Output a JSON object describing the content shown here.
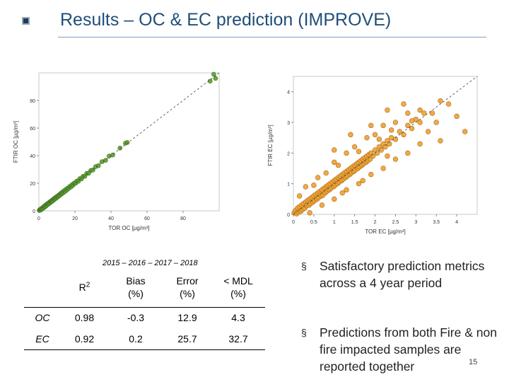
{
  "slide": {
    "title": "Results – OC & EC prediction (IMPROVE)",
    "page_number": "15"
  },
  "chart_data": [
    {
      "type": "scatter",
      "title": "",
      "xlabel": "TOR OC [µg/m³]",
      "ylabel": "FTIR OC [µg/m³]",
      "x_ticks": [
        "0",
        "20",
        "40",
        "60",
        "80"
      ],
      "y_ticks": [
        "0",
        "20",
        "40",
        "60",
        "80"
      ],
      "xlim": [
        0,
        100
      ],
      "ylim": [
        0,
        100
      ],
      "marker_color": "#5aa02c",
      "one_to_one_line": true,
      "points": [
        [
          0.2,
          0.3
        ],
        [
          0.5,
          0.8
        ],
        [
          0.8,
          0.4
        ],
        [
          1.0,
          1.3
        ],
        [
          1.3,
          0.9
        ],
        [
          1.6,
          1.8
        ],
        [
          1.9,
          1.4
        ],
        [
          2.2,
          2.5
        ],
        [
          2.5,
          2.0
        ],
        [
          2.8,
          3.1
        ],
        [
          3.1,
          2.6
        ],
        [
          3.4,
          3.8
        ],
        [
          3.7,
          3.2
        ],
        [
          4.0,
          4.4
        ],
        [
          4.3,
          3.9
        ],
        [
          4.6,
          5.0
        ],
        [
          4.9,
          4.5
        ],
        [
          5.2,
          5.6
        ],
        [
          5.5,
          5.1
        ],
        [
          5.8,
          6.2
        ],
        [
          6.1,
          5.7
        ],
        [
          6.4,
          6.8
        ],
        [
          6.7,
          6.3
        ],
        [
          7.0,
          7.4
        ],
        [
          7.3,
          6.9
        ],
        [
          7.6,
          8.0
        ],
        [
          7.9,
          7.5
        ],
        [
          8.2,
          8.6
        ],
        [
          8.5,
          8.1
        ],
        [
          8.8,
          9.2
        ],
        [
          9.1,
          8.7
        ],
        [
          9.4,
          9.8
        ],
        [
          9.7,
          9.3
        ],
        [
          10.0,
          10.4
        ],
        [
          10.4,
          10.0
        ],
        [
          10.8,
          11.2
        ],
        [
          11.2,
          10.8
        ],
        [
          11.6,
          12.0
        ],
        [
          12.0,
          11.6
        ],
        [
          12.4,
          12.9
        ],
        [
          12.8,
          12.4
        ],
        [
          13.2,
          13.7
        ],
        [
          13.6,
          13.2
        ],
        [
          14.0,
          14.5
        ],
        [
          14.5,
          14.0
        ],
        [
          15.0,
          15.6
        ],
        [
          15.5,
          15.0
        ],
        [
          16.0,
          16.5
        ],
        [
          16.6,
          16.2
        ],
        [
          17.2,
          17.7
        ],
        [
          17.8,
          17.3
        ],
        [
          18.4,
          19.0
        ],
        [
          19.0,
          18.6
        ],
        [
          19.7,
          20.2
        ],
        [
          20.4,
          20.0
        ],
        [
          21.1,
          21.6
        ],
        [
          21.9,
          21.4
        ],
        [
          22.7,
          23.3
        ],
        [
          23.6,
          23.1
        ],
        [
          24.5,
          25.0
        ],
        [
          25.5,
          25.0
        ],
        [
          26.5,
          27.1
        ],
        [
          27.6,
          27.2
        ],
        [
          28.8,
          29.2
        ],
        [
          30.0,
          29.6
        ],
        [
          31.5,
          32.0
        ],
        [
          33.0,
          32.7
        ],
        [
          35.0,
          35.6
        ],
        [
          37.0,
          36.6
        ],
        [
          39.0,
          39.7
        ],
        [
          41.0,
          40.5
        ],
        [
          45.0,
          45.5
        ],
        [
          48.0,
          49.0
        ],
        [
          49.0,
          49.5
        ],
        [
          97.0,
          99.0
        ],
        [
          98.0,
          96.0
        ],
        [
          95.0,
          94.0
        ]
      ]
    },
    {
      "type": "scatter",
      "title": "",
      "xlabel": "TOR EC [µg/m³]",
      "ylabel": "FTIR EC [µg/m³]",
      "x_ticks": [
        "0",
        "0.5",
        "1",
        "1.5",
        "2",
        "2.5",
        "3",
        "3.5",
        "4"
      ],
      "y_ticks": [
        "0",
        "1",
        "2",
        "3",
        "4"
      ],
      "xlim": [
        0,
        4.5
      ],
      "ylim": [
        0,
        4.5
      ],
      "marker_color": "#f0a030",
      "one_to_one_line": true,
      "points": [
        [
          0.02,
          0.05
        ],
        [
          0.05,
          0.12
        ],
        [
          0.08,
          0.02
        ],
        [
          0.1,
          0.2
        ],
        [
          0.12,
          0.08
        ],
        [
          0.15,
          0.25
        ],
        [
          0.18,
          0.1
        ],
        [
          0.2,
          0.3
        ],
        [
          0.22,
          0.15
        ],
        [
          0.25,
          0.35
        ],
        [
          0.28,
          0.2
        ],
        [
          0.3,
          0.4
        ],
        [
          0.32,
          0.28
        ],
        [
          0.35,
          0.45
        ],
        [
          0.38,
          0.3
        ],
        [
          0.4,
          0.5
        ],
        [
          0.42,
          0.35
        ],
        [
          0.45,
          0.55
        ],
        [
          0.48,
          0.4
        ],
        [
          0.5,
          0.6
        ],
        [
          0.52,
          0.45
        ],
        [
          0.55,
          0.65
        ],
        [
          0.58,
          0.5
        ],
        [
          0.6,
          0.7
        ],
        [
          0.62,
          0.55
        ],
        [
          0.65,
          0.75
        ],
        [
          0.68,
          0.6
        ],
        [
          0.7,
          0.8
        ],
        [
          0.72,
          0.62
        ],
        [
          0.75,
          0.85
        ],
        [
          0.78,
          0.7
        ],
        [
          0.8,
          0.9
        ],
        [
          0.82,
          0.75
        ],
        [
          0.85,
          0.95
        ],
        [
          0.88,
          0.8
        ],
        [
          0.9,
          1.0
        ],
        [
          0.92,
          0.85
        ],
        [
          0.95,
          1.05
        ],
        [
          0.98,
          0.9
        ],
        [
          1.0,
          1.1
        ],
        [
          1.02,
          0.95
        ],
        [
          1.05,
          1.15
        ],
        [
          1.08,
          1.0
        ],
        [
          1.1,
          1.2
        ],
        [
          1.12,
          1.05
        ],
        [
          1.15,
          1.25
        ],
        [
          1.18,
          1.1
        ],
        [
          1.2,
          1.3
        ],
        [
          1.22,
          1.15
        ],
        [
          1.25,
          1.35
        ],
        [
          1.28,
          1.2
        ],
        [
          1.3,
          1.4
        ],
        [
          1.32,
          1.25
        ],
        [
          1.35,
          1.45
        ],
        [
          1.38,
          1.3
        ],
        [
          1.4,
          1.5
        ],
        [
          1.42,
          1.35
        ],
        [
          1.45,
          1.55
        ],
        [
          1.48,
          1.4
        ],
        [
          1.5,
          1.6
        ],
        [
          1.52,
          1.45
        ],
        [
          1.55,
          1.65
        ],
        [
          1.58,
          1.5
        ],
        [
          1.6,
          1.7
        ],
        [
          1.62,
          1.55
        ],
        [
          1.65,
          1.75
        ],
        [
          1.68,
          1.6
        ],
        [
          1.7,
          1.8
        ],
        [
          1.72,
          1.65
        ],
        [
          1.75,
          1.85
        ],
        [
          1.78,
          1.7
        ],
        [
          1.8,
          1.9
        ],
        [
          1.82,
          1.75
        ],
        [
          1.85,
          1.95
        ],
        [
          1.88,
          1.8
        ],
        [
          1.9,
          2.0
        ],
        [
          1.95,
          1.9
        ],
        [
          2.0,
          2.1
        ],
        [
          2.05,
          2.0
        ],
        [
          2.1,
          2.2
        ],
        [
          2.15,
          2.1
        ],
        [
          2.2,
          2.3
        ],
        [
          2.25,
          2.2
        ],
        [
          2.3,
          2.4
        ],
        [
          2.35,
          2.3
        ],
        [
          2.4,
          2.5
        ],
        [
          2.5,
          2.45
        ],
        [
          2.6,
          2.7
        ],
        [
          2.7,
          2.6
        ],
        [
          2.8,
          2.9
        ],
        [
          2.9,
          2.8
        ],
        [
          3.0,
          3.1
        ],
        [
          3.1,
          3.0
        ],
        [
          3.2,
          3.3
        ],
        [
          3.4,
          3.3
        ],
        [
          3.6,
          3.7
        ],
        [
          3.8,
          3.6
        ],
        [
          4.0,
          3.2
        ],
        [
          4.2,
          2.7
        ],
        [
          0.3,
          0.9
        ],
        [
          0.6,
          1.2
        ],
        [
          1.0,
          1.7
        ],
        [
          1.3,
          2.0
        ],
        [
          1.5,
          2.2
        ],
        [
          1.8,
          2.5
        ],
        [
          2.0,
          2.6
        ],
        [
          2.2,
          2.9
        ],
        [
          2.5,
          3.0
        ],
        [
          2.8,
          3.3
        ],
        [
          0.4,
          0.05
        ],
        [
          0.7,
          0.3
        ],
        [
          1.0,
          0.5
        ],
        [
          1.3,
          0.8
        ],
        [
          1.6,
          1.0
        ],
        [
          1.9,
          1.3
        ],
        [
          2.2,
          1.5
        ],
        [
          2.5,
          1.8
        ],
        [
          2.8,
          2.0
        ],
        [
          3.1,
          2.3
        ],
        [
          1.0,
          2.1
        ],
        [
          1.4,
          2.6
        ],
        [
          1.9,
          2.9
        ],
        [
          2.3,
          3.4
        ],
        [
          2.7,
          3.6
        ],
        [
          3.1,
          3.4
        ],
        [
          3.5,
          3.0
        ],
        [
          0.15,
          0.6
        ],
        [
          0.5,
          0.95
        ],
        [
          0.8,
          1.35
        ],
        [
          1.1,
          1.6
        ],
        [
          1.6,
          2.05
        ],
        [
          2.1,
          2.45
        ],
        [
          2.4,
          2.75
        ],
        [
          2.9,
          3.05
        ],
        [
          3.3,
          2.7
        ],
        [
          3.6,
          2.4
        ],
        [
          1.2,
          0.7
        ],
        [
          1.7,
          1.1
        ],
        [
          2.3,
          1.9
        ]
      ]
    }
  ],
  "table": {
    "caption": "2015 – 2016 – 2017 – 2018",
    "headers": {
      "r2_main": "R",
      "r2_sup": "2",
      "bias_line1": "Bias",
      "bias_line2": "(%)",
      "error_line1": "Error",
      "error_line2": "(%)",
      "mdl_line1": "< MDL",
      "mdl_line2": "(%)"
    },
    "rows": [
      {
        "label": "OC",
        "r2": "0.98",
        "bias": "-0.3",
        "error": "12.9",
        "mdl": "4.3"
      },
      {
        "label": "EC",
        "r2": "0.92",
        "bias": "0.2",
        "error": "25.7",
        "mdl": "32.7"
      }
    ]
  },
  "bullets": [
    {
      "mark": "§",
      "text": "Satisfactory prediction metrics across a 4 year period"
    },
    {
      "mark": "§",
      "text": "Predictions from both Fire & non fire impacted samples are reported together"
    }
  ]
}
